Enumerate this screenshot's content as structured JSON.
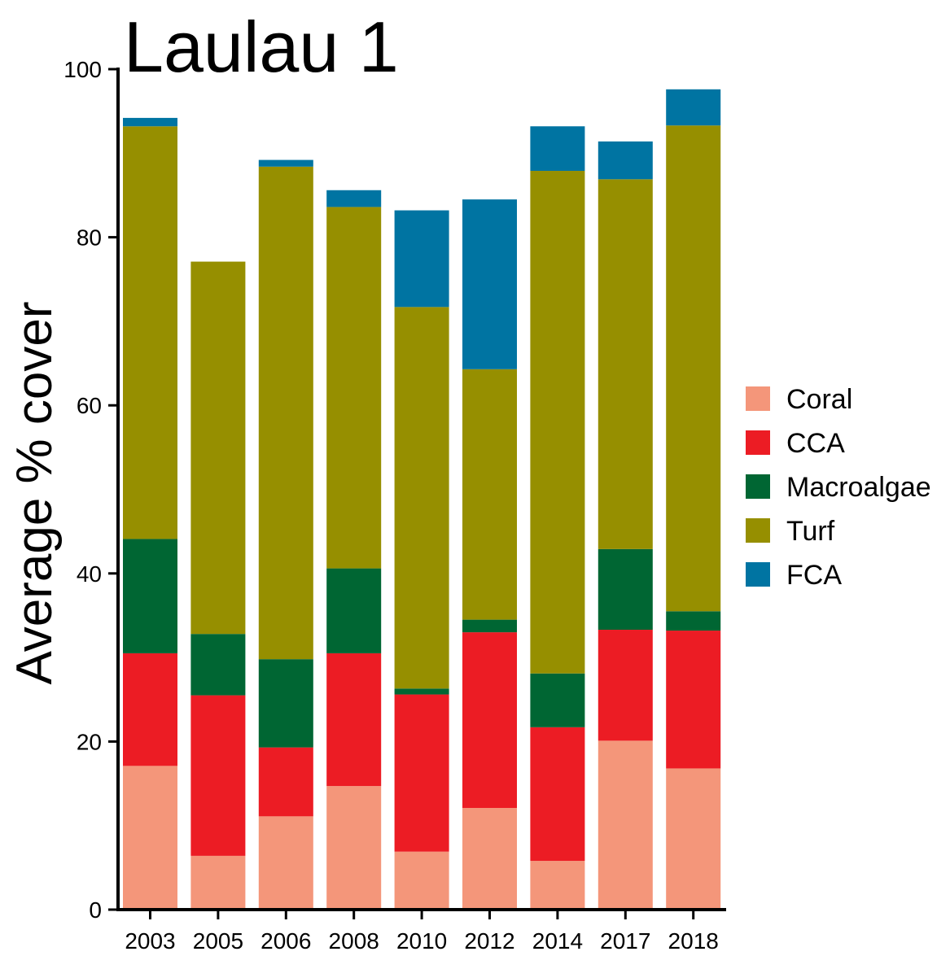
{
  "chart_data": {
    "type": "bar",
    "stacked": true,
    "title": "Laulau 1",
    "ylabel": "Average % cover",
    "xlabel": "",
    "ylim": [
      0,
      100
    ],
    "yticks": [
      0,
      20,
      40,
      60,
      80,
      100
    ],
    "grid": false,
    "legend_position": "right",
    "categories": [
      "2003",
      "2005",
      "2006",
      "2008",
      "2010",
      "2012",
      "2014",
      "2017",
      "2018"
    ],
    "series": [
      {
        "name": "Coral",
        "color": "#f4967a",
        "values": [
          17.1,
          6.4,
          11.1,
          14.7,
          6.9,
          12.1,
          5.8,
          20.1,
          16.8
        ]
      },
      {
        "name": "CCA",
        "color": "#ec1c24",
        "values": [
          13.4,
          19.1,
          8.2,
          15.8,
          18.7,
          20.9,
          15.9,
          13.2,
          16.4
        ]
      },
      {
        "name": "Macroalgae",
        "color": "#006633",
        "values": [
          13.6,
          7.3,
          10.5,
          10.1,
          0.7,
          1.5,
          6.4,
          9.6,
          2.3
        ]
      },
      {
        "name": "Turf",
        "color": "#968f00",
        "values": [
          49.1,
          44.3,
          58.6,
          43.0,
          45.4,
          29.8,
          59.8,
          44.0,
          57.8
        ]
      },
      {
        "name": "FCA",
        "color": "#0074a2",
        "values": [
          1.0,
          0,
          0.8,
          2.0,
          11.5,
          20.2,
          5.3,
          4.5,
          4.3
        ]
      }
    ]
  }
}
